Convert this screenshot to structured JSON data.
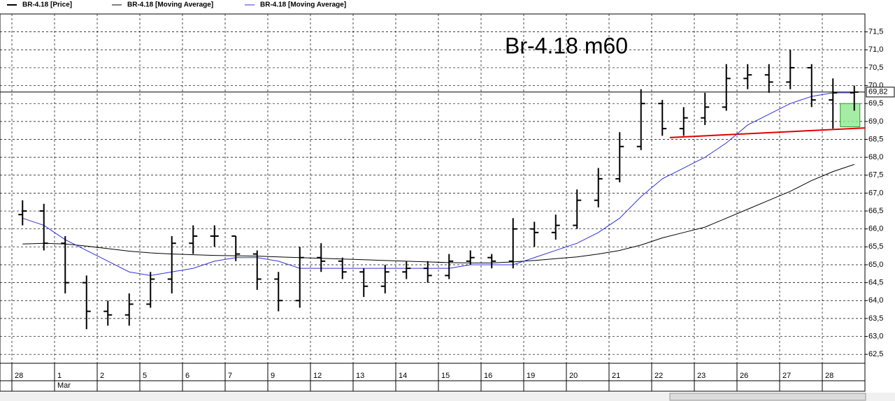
{
  "chart_data": {
    "type": "ohlc",
    "annotation": "Br-4.18 m60",
    "categories": [
      "28",
      null,
      "1",
      null,
      "2",
      null,
      "5",
      null,
      "6",
      null,
      "7",
      null,
      "9",
      null,
      "12",
      null,
      "13",
      null,
      "14",
      null,
      "15",
      null,
      "16",
      null,
      "19",
      null,
      "20",
      null,
      "21",
      null,
      "22",
      null,
      "23",
      null,
      "26",
      null,
      "27",
      null,
      "28",
      null
    ],
    "month": "Mar",
    "series": [
      {
        "name": "BR-4.18 [Price]",
        "color": "#000000",
        "open": [
          66.4,
          66.5,
          65.6,
          64.5,
          63.7,
          63.6,
          63.9,
          64.6,
          65.6,
          65.8,
          65.8,
          65.3,
          64.6,
          64.0,
          65.2,
          65.1,
          64.8,
          64.4,
          64.8,
          64.9,
          64.7,
          65.1,
          65.2,
          65.1,
          66.0,
          65.9,
          66.1,
          66.8,
          67.4,
          68.3,
          69.5,
          68.8,
          69.1,
          69.4,
          70.2,
          70.3,
          70.1,
          70.5,
          69.6,
          69.8
        ],
        "high": [
          66.8,
          66.7,
          65.8,
          64.7,
          64.0,
          64.2,
          64.8,
          65.8,
          66.1,
          66.1,
          65.8,
          65.4,
          64.8,
          65.5,
          65.6,
          65.2,
          64.9,
          65.0,
          65.1,
          65.1,
          65.3,
          65.4,
          65.3,
          66.3,
          66.2,
          66.4,
          67.1,
          67.7,
          68.7,
          69.9,
          69.6,
          69.4,
          69.8,
          70.6,
          70.6,
          70.6,
          71.0,
          70.6,
          70.2,
          70.0
        ],
        "low": [
          66.1,
          65.4,
          64.2,
          63.2,
          63.3,
          63.3,
          63.8,
          64.2,
          65.3,
          65.5,
          65.1,
          64.3,
          63.7,
          63.8,
          64.8,
          64.6,
          64.1,
          64.2,
          64.6,
          64.5,
          64.6,
          65.0,
          64.9,
          64.9,
          65.5,
          65.7,
          66.0,
          66.6,
          67.3,
          68.2,
          68.6,
          68.6,
          68.9,
          69.3,
          69.9,
          69.8,
          69.9,
          69.4,
          68.8,
          69.3
        ],
        "close": [
          66.5,
          65.6,
          64.5,
          63.7,
          63.6,
          63.9,
          64.6,
          65.6,
          65.8,
          65.8,
          65.3,
          64.6,
          64.0,
          65.2,
          65.1,
          64.8,
          64.4,
          64.8,
          64.9,
          64.7,
          65.1,
          65.2,
          65.1,
          66.0,
          65.9,
          66.1,
          66.8,
          67.4,
          68.3,
          69.5,
          68.8,
          69.1,
          69.4,
          70.2,
          70.3,
          70.1,
          70.5,
          69.6,
          69.8,
          69.82
        ]
      },
      {
        "name": "BR-4.18 [Moving Average]",
        "color": "#000000",
        "values": [
          65.58,
          65.6,
          65.58,
          65.52,
          65.45,
          65.38,
          65.33,
          65.3,
          65.28,
          65.26,
          65.25,
          65.24,
          65.22,
          65.2,
          65.18,
          65.16,
          65.14,
          65.12,
          65.1,
          65.08,
          65.06,
          65.05,
          65.05,
          65.08,
          65.12,
          65.17,
          65.22,
          65.3,
          65.4,
          65.55,
          65.75,
          65.9,
          66.05,
          66.3,
          66.55,
          66.8,
          67.05,
          67.35,
          67.6,
          67.8
        ]
      },
      {
        "name": "BR-4.18 [Moving Average]",
        "color": "#3030e0",
        "values": [
          66.3,
          66.1,
          65.7,
          65.4,
          65.1,
          64.8,
          64.7,
          64.8,
          64.9,
          65.1,
          65.2,
          65.2,
          65.1,
          64.9,
          64.9,
          64.9,
          64.9,
          64.9,
          64.9,
          64.9,
          64.9,
          65.0,
          65.0,
          65.0,
          65.2,
          65.4,
          65.6,
          65.9,
          66.3,
          66.9,
          67.4,
          67.7,
          68.0,
          68.4,
          68.9,
          69.2,
          69.5,
          69.7,
          69.8,
          69.8
        ]
      }
    ],
    "last_price": {
      "value": 69.82,
      "label": "69,82"
    },
    "trendline": {
      "from": 68.55,
      "to": 68.82,
      "color": "#e00000"
    },
    "highlight": {
      "low": 68.85,
      "high": 69.5,
      "color": "#8ee88e"
    },
    "ylim": [
      62.25,
      72
    ],
    "yticks": [
      {
        "value": 62.5,
        "label": "62,5"
      },
      {
        "value": 63,
        "label": "63,0"
      },
      {
        "value": 63.5,
        "label": "63,5"
      },
      {
        "value": 64,
        "label": "64,0"
      },
      {
        "value": 64.5,
        "label": "64,5"
      },
      {
        "value": 65,
        "label": "65,0"
      },
      {
        "value": 65.5,
        "label": "65,5"
      },
      {
        "value": 66,
        "label": "66,0"
      },
      {
        "value": 66.5,
        "label": "66,5"
      },
      {
        "value": 67,
        "label": "67,0"
      },
      {
        "value": 67.5,
        "label": "67,5"
      },
      {
        "value": 68,
        "label": "68,0"
      },
      {
        "value": 68.5,
        "label": "68,5"
      },
      {
        "value": 69,
        "label": "69,0"
      },
      {
        "value": 69.5,
        "label": "69,5"
      },
      {
        "value": 70,
        "label": "70,0"
      },
      {
        "value": 70.5,
        "label": "70,5"
      },
      {
        "value": 71,
        "label": "71,0"
      },
      {
        "value": 71.5,
        "label": "71,5"
      }
    ],
    "grid": true
  }
}
